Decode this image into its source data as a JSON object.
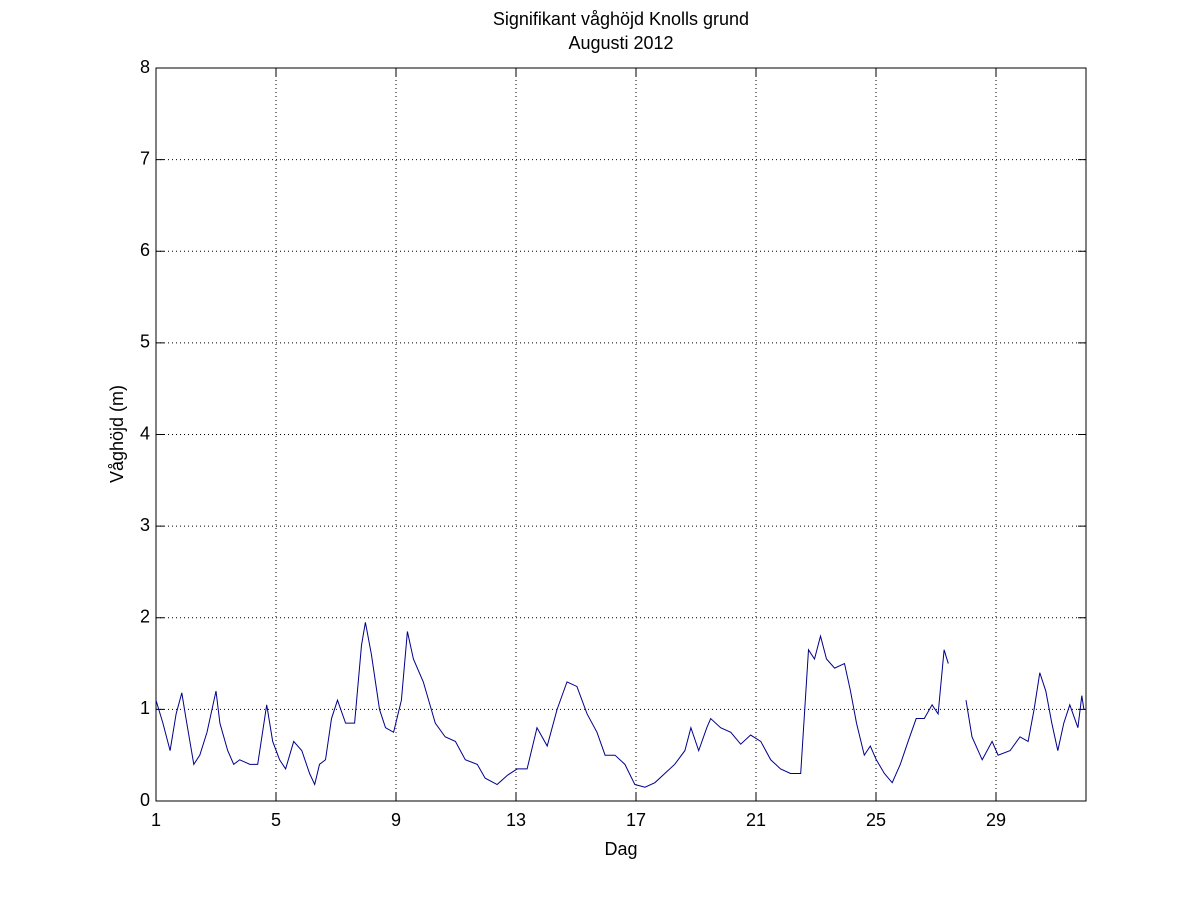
{
  "chart_data": {
    "type": "line",
    "title": "Signifikant våghöjd Knolls grund",
    "subtitle": "Augusti 2012",
    "x_label": "Dag",
    "y_label": "Våghöjd (m)",
    "grid": true,
    "xlim": [
      1,
      32
    ],
    "xticks": [
      1,
      5,
      9,
      13,
      17,
      21,
      25,
      29
    ],
    "ylim": [
      0,
      8
    ],
    "yticks": [
      0,
      1,
      2,
      3,
      4,
      5,
      6,
      7,
      8
    ],
    "x": [
      1.0,
      1.23,
      1.47,
      1.67,
      1.86,
      2.0,
      2.26,
      2.46,
      2.7,
      3.0,
      3.13,
      3.39,
      3.59,
      3.79,
      4.13,
      4.39,
      4.69,
      4.89,
      5.12,
      5.32,
      5.59,
      5.86,
      6.12,
      6.29,
      6.45,
      6.65,
      6.85,
      7.05,
      7.32,
      7.62,
      7.85,
      7.98,
      8.18,
      8.45,
      8.65,
      8.92,
      9.18,
      9.38,
      9.58,
      9.91,
      10.31,
      10.64,
      10.98,
      11.31,
      11.71,
      11.97,
      12.37,
      12.71,
      13.04,
      13.37,
      13.7,
      14.04,
      14.37,
      14.7,
      15.03,
      15.37,
      15.7,
      15.97,
      16.3,
      16.63,
      16.96,
      17.3,
      17.63,
      17.96,
      18.29,
      18.63,
      18.83,
      19.09,
      19.36,
      19.49,
      19.82,
      20.16,
      20.49,
      20.82,
      21.16,
      21.49,
      21.82,
      22.15,
      22.49,
      22.75,
      22.95,
      23.15,
      23.35,
      23.62,
      23.95,
      24.15,
      24.35,
      24.61,
      24.81,
      25.01,
      25.28,
      25.54,
      25.81,
      26.07,
      26.34,
      26.61,
      26.87,
      27.07,
      27.27,
      27.41,
      27.7,
      28.0,
      28.2,
      28.54,
      28.87,
      29.07,
      29.47,
      29.8,
      30.07,
      30.27,
      30.46,
      30.66,
      30.86,
      31.06,
      31.26,
      31.46,
      31.73,
      31.86,
      31.93
    ],
    "series": [
      {
        "name": "Våghöjd",
        "color": "#00008b",
        "values": [
          1.1,
          0.85,
          0.55,
          0.95,
          1.18,
          0.9,
          0.4,
          0.5,
          0.75,
          1.2,
          0.85,
          0.55,
          0.4,
          0.45,
          0.4,
          0.4,
          1.05,
          0.65,
          0.45,
          0.35,
          0.65,
          0.55,
          0.3,
          0.18,
          0.4,
          0.45,
          0.9,
          1.1,
          0.85,
          0.85,
          1.7,
          1.95,
          1.6,
          1.0,
          0.8,
          0.75,
          1.1,
          1.85,
          1.55,
          1.3,
          0.85,
          0.7,
          0.65,
          0.45,
          0.4,
          0.25,
          0.18,
          0.28,
          0.35,
          0.35,
          0.8,
          0.6,
          1.0,
          1.3,
          1.25,
          0.95,
          0.75,
          0.5,
          0.5,
          0.4,
          0.18,
          0.15,
          0.2,
          0.3,
          0.4,
          0.55,
          0.8,
          0.55,
          0.8,
          0.9,
          0.8,
          0.75,
          0.62,
          0.72,
          0.65,
          0.45,
          0.35,
          0.3,
          0.3,
          1.65,
          1.55,
          1.8,
          1.55,
          1.45,
          1.5,
          1.2,
          0.85,
          0.5,
          0.6,
          0.45,
          0.3,
          0.2,
          0.4,
          0.65,
          0.9,
          0.9,
          1.05,
          0.95,
          1.65,
          1.5,
          null,
          1.1,
          0.7,
          0.45,
          0.65,
          0.5,
          0.55,
          0.7,
          0.65,
          1.0,
          1.4,
          1.2,
          0.85,
          0.55,
          0.85,
          1.05,
          0.8,
          1.15,
          1.0
        ]
      }
    ]
  }
}
